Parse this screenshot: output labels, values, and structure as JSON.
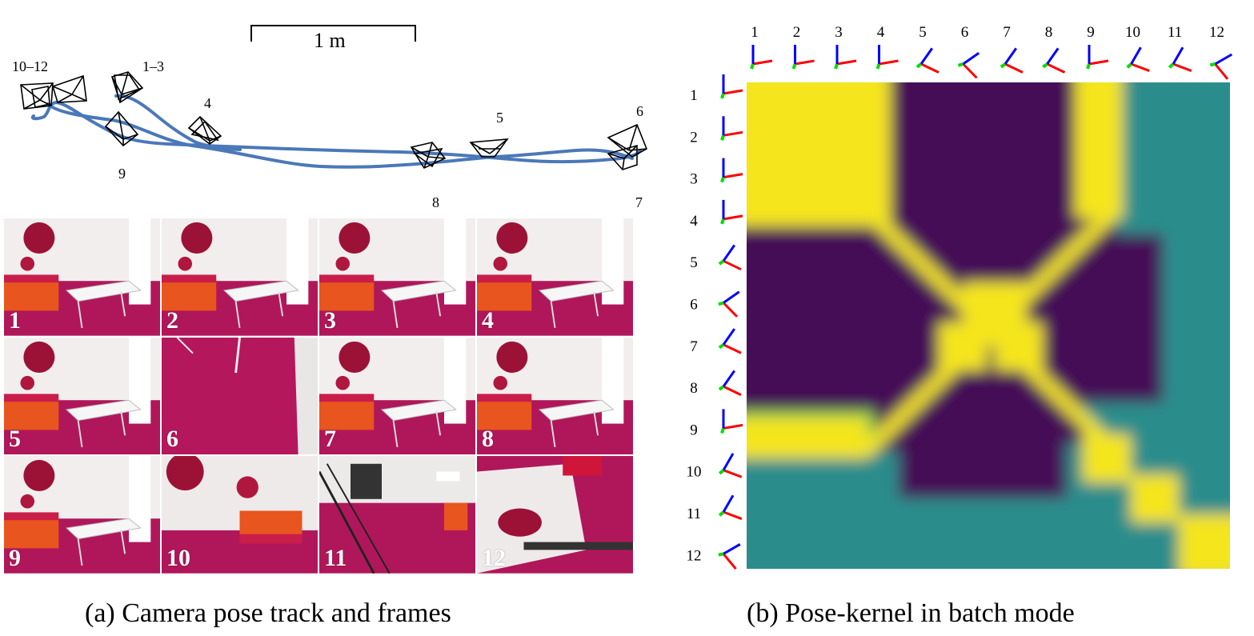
{
  "panel_a": {
    "scale_bar_label": "1 m",
    "camera_labels": {
      "cams_10_12": "10–12",
      "cams_1_3": "1–3",
      "cam_4": "4",
      "cam_5": "5",
      "cam_6": "6",
      "cam_7": "7",
      "cam_8": "8",
      "cam_9": "9"
    },
    "track_color": "#4a78b9",
    "frames": [
      {
        "label": "1",
        "view": "room"
      },
      {
        "label": "2",
        "view": "room"
      },
      {
        "label": "3",
        "view": "room"
      },
      {
        "label": "4",
        "view": "room"
      },
      {
        "label": "5",
        "view": "room"
      },
      {
        "label": "6",
        "view": "floor"
      },
      {
        "label": "7",
        "view": "room"
      },
      {
        "label": "8",
        "view": "room"
      },
      {
        "label": "9",
        "view": "room"
      },
      {
        "label": "10",
        "view": "room-left"
      },
      {
        "label": "11",
        "view": "equipment"
      },
      {
        "label": "12",
        "view": "ceiling"
      }
    ],
    "caption": "(a) Camera pose track and frames"
  },
  "panel_b": {
    "axis_labels": [
      "1",
      "2",
      "3",
      "4",
      "5",
      "6",
      "7",
      "8",
      "9",
      "10",
      "11",
      "12"
    ],
    "colors": {
      "low": "#440a56",
      "mid": "#2a8d8c",
      "high": "#f4e51e",
      "axis_x": "#ff0000",
      "axis_y": "#0000ff",
      "axis_z": "#00dd00"
    },
    "caption": "(b) Pose-kernel in batch mode"
  }
}
